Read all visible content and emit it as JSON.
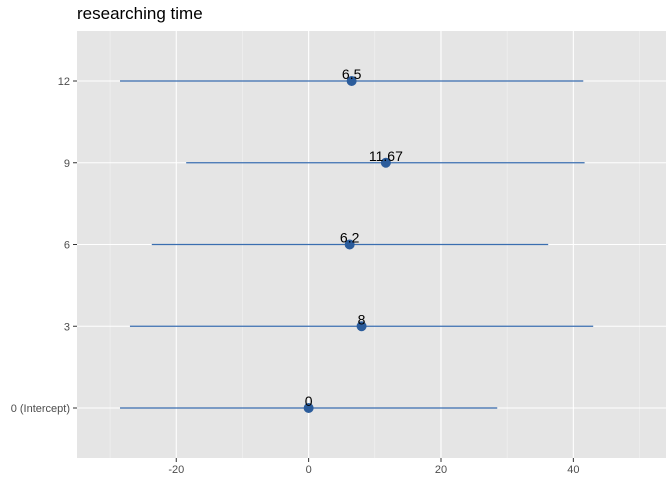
{
  "chart_data": {
    "type": "forest",
    "title": "researching time",
    "xlabel": "",
    "ylabel": "",
    "xlim": [
      -35,
      54
    ],
    "x_ticks": [
      -20,
      0,
      20,
      40
    ],
    "x_tick_labels": [
      "-20",
      "0",
      "20",
      "40"
    ],
    "grid": true,
    "categories": [
      "0 (Intercept)",
      "3",
      "6",
      "9",
      "12"
    ],
    "estimates": [
      0,
      8,
      6.2,
      11.67,
      6.5
    ],
    "estimate_labels": [
      "0",
      "8",
      "6.2",
      "11.67",
      "6.5"
    ],
    "ci_lower": [
      -28.5,
      -27.0,
      -23.7,
      -18.5,
      -28.5
    ],
    "ci_upper": [
      28.5,
      43.0,
      36.2,
      41.7,
      41.5
    ],
    "colors": {
      "point": "#2b5c9b",
      "line": "#3a6eb0",
      "panel": "#e5e5e5",
      "grid_major": "#ffffff",
      "grid_minor": "#f2f2f2"
    }
  }
}
